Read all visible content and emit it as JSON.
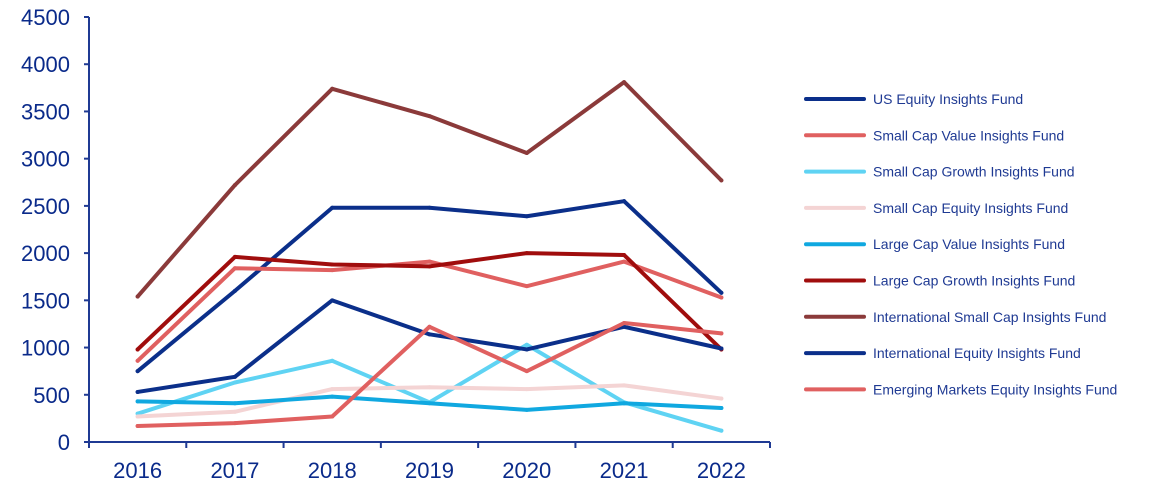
{
  "chart_data": {
    "type": "line",
    "title": "",
    "xlabel": "",
    "ylabel": "",
    "categories": [
      "2016",
      "2017",
      "2018",
      "2019",
      "2020",
      "2021",
      "2022"
    ],
    "ylim": [
      0,
      4500
    ],
    "yticks": [
      0,
      500,
      1000,
      1500,
      2000,
      2500,
      3000,
      3500,
      4000,
      4500
    ],
    "legend_position": "right",
    "grid": false,
    "series": [
      {
        "name": "US Equity Insights Fund",
        "color": "#0b2f8a",
        "values": [
          750,
          1600,
          2480,
          2480,
          2390,
          2550,
          1580
        ]
      },
      {
        "name": "Small Cap Value Insights Fund",
        "color": "#e06060",
        "values": [
          860,
          1840,
          1820,
          1910,
          1650,
          1910,
          1530
        ]
      },
      {
        "name": "Small Cap Growth Insights Fund",
        "color": "#5fd3f3",
        "values": [
          300,
          630,
          860,
          420,
          1030,
          420,
          120
        ]
      },
      {
        "name": "Small Cap Equity Insights Fund",
        "color": "#f4d4d4",
        "values": [
          270,
          320,
          560,
          580,
          560,
          600,
          460
        ]
      },
      {
        "name": "Large Cap Value Insights Fund",
        "color": "#10a8e0",
        "values": [
          430,
          410,
          480,
          410,
          340,
          410,
          360
        ]
      },
      {
        "name": "Large Cap Growth Insights Fund",
        "color": "#a00d0d",
        "values": [
          980,
          1960,
          1880,
          1860,
          2000,
          1980,
          980
        ]
      },
      {
        "name": "International Small Cap Insights Fund",
        "color": "#8b3a3a",
        "values": [
          1540,
          2720,
          3740,
          3450,
          3060,
          3810,
          2770
        ]
      },
      {
        "name": "International Equity Insights Fund",
        "color": "#0b2f8a",
        "values": [
          530,
          690,
          1500,
          1140,
          980,
          1220,
          990
        ]
      },
      {
        "name": "Emerging Markets Equity Insights Fund",
        "color": "#e06060",
        "values": [
          170,
          200,
          270,
          1220,
          750,
          1260,
          1150
        ]
      }
    ]
  }
}
